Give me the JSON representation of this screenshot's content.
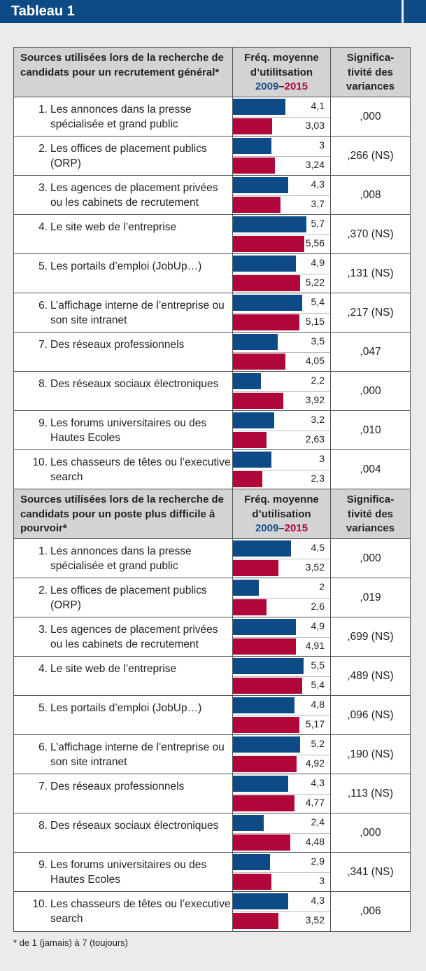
{
  "title": "Tableau 1",
  "footnote": "* de 1 (jamais) à 7 (toujours)",
  "colors": {
    "y2009": "#0e4a86",
    "y2015": "#b0063a"
  },
  "chart_data": {
    "type": "bar",
    "title": "Tableau 1",
    "xlim": [
      0,
      7
    ],
    "series_names": [
      "2009",
      "2015"
    ],
    "sections": [
      {
        "header": {
          "col1": "Sources utilisées lors de la recherche de candidats pour un recrutement général*",
          "col2a": "Fréq. moyenne d’utilitsation",
          "y1": "2009",
          "dash": "–",
          "y2": "2015",
          "col3": "Significa- tivité des variances"
        },
        "rows": [
          {
            "num": "1.",
            "label": "Les annonces dans la presse spécialisée et grand public",
            "v2009": 4.1,
            "t2009": "4,1",
            "v2015": 3.03,
            "t2015": "3,03",
            "sig": ",000"
          },
          {
            "num": "2.",
            "label": "Les offices de placement publics (ORP)",
            "v2009": 3,
            "t2009": "3",
            "v2015": 3.24,
            "t2015": "3,24",
            "sig": ",266 (NS)"
          },
          {
            "num": "3.",
            "label": "Les agences de placement privées ou les cabinets de recrutement",
            "v2009": 4.3,
            "t2009": "4,3",
            "v2015": 3.7,
            "t2015": "3,7",
            "sig": ",008"
          },
          {
            "num": "4.",
            "label": "Le site web de l’entreprise",
            "v2009": 5.7,
            "t2009": "5,7",
            "v2015": 5.56,
            "t2015": "5,56",
            "sig": ",370 (NS)"
          },
          {
            "num": "5.",
            "label": "Les portails d’emploi (JobUp…)",
            "v2009": 4.9,
            "t2009": "4,9",
            "v2015": 5.22,
            "t2015": "5,22",
            "sig": ",131 (NS)"
          },
          {
            "num": "6.",
            "label": "L’affichage interne de l’entreprise ou son site intranet",
            "v2009": 5.4,
            "t2009": "5,4",
            "v2015": 5.15,
            "t2015": "5,15",
            "sig": ",217 (NS)"
          },
          {
            "num": "7.",
            "label": "Des réseaux professionnels",
            "v2009": 3.5,
            "t2009": "3,5",
            "v2015": 4.05,
            "t2015": "4,05",
            "sig": ",047"
          },
          {
            "num": "8.",
            "label": "Des réseaux sociaux électroniques",
            "v2009": 2.2,
            "t2009": "2,2",
            "v2015": 3.92,
            "t2015": "3,92",
            "sig": ",000"
          },
          {
            "num": "9.",
            "label": "Les forums universitaires ou des Hautes Ecoles",
            "v2009": 3.2,
            "t2009": "3,2",
            "v2015": 2.63,
            "t2015": "2,63",
            "sig": ",010"
          },
          {
            "num": "10.",
            "label": "Les chasseurs de têtes ou l’executive search",
            "v2009": 3,
            "t2009": "3",
            "v2015": 2.3,
            "t2015": "2,3",
            "sig": ",004"
          }
        ]
      },
      {
        "header": {
          "col1": "Sources utilisées lors de la recherche de candidats pour un poste plus difficile à pourvoir*",
          "col2a": "Fréq. moyenne d’utilisation",
          "y1": "2009",
          "dash": "–",
          "y2": "2015",
          "col3": "Significa- tivité des variances"
        },
        "rows": [
          {
            "num": "1.",
            "label": "Les annonces dans la presse spécialisée et grand public",
            "v2009": 4.5,
            "t2009": "4,5",
            "v2015": 3.52,
            "t2015": "3,52",
            "sig": ",000"
          },
          {
            "num": "2.",
            "label": "Les offices de placement publics (ORP)",
            "v2009": 2,
            "t2009": "2",
            "v2015": 2.6,
            "t2015": "2,6",
            "sig": ",019"
          },
          {
            "num": "3.",
            "label": "Les agences de placement privées ou les cabinets de recrutement",
            "v2009": 4.9,
            "t2009": "4,9",
            "v2015": 4.91,
            "t2015": "4,91",
            "sig": ",699 (NS)"
          },
          {
            "num": "4.",
            "label": "Le site web de l’entreprise",
            "v2009": 5.5,
            "t2009": "5,5",
            "v2015": 5.4,
            "t2015": "5,4",
            "sig": ",489 (NS)"
          },
          {
            "num": "5.",
            "label": "Les portails d’emploi (JobUp…)",
            "v2009": 4.8,
            "t2009": "4,8",
            "v2015": 5.17,
            "t2015": "5,17",
            "sig": ",096 (NS)"
          },
          {
            "num": "6.",
            "label": "L’affichage interne de l’entreprise ou son site intranet",
            "v2009": 5.2,
            "t2009": "5,2",
            "v2015": 4.92,
            "t2015": "4,92",
            "sig": ",190 (NS)"
          },
          {
            "num": "7.",
            "label": "Des réseaux professionnels",
            "v2009": 4.3,
            "t2009": "4,3",
            "v2015": 4.77,
            "t2015": "4,77",
            "sig": ",113 (NS)"
          },
          {
            "num": "8.",
            "label": "Des réseaux sociaux électroniques",
            "v2009": 2.4,
            "t2009": "2,4",
            "v2015": 4.48,
            "t2015": "4,48",
            "sig": ",000"
          },
          {
            "num": "9.",
            "label": "Les forums universitaires ou des Hautes Ecoles",
            "v2009": 2.9,
            "t2009": "2,9",
            "v2015": 3,
            "t2015": "3",
            "sig": ",341 (NS)"
          },
          {
            "num": "10.",
            "label": "Les chasseurs de têtes ou l’executive search",
            "v2009": 4.3,
            "t2009": "4,3",
            "v2015": 3.52,
            "t2015": "3,52",
            "sig": ",006"
          }
        ]
      }
    ]
  }
}
